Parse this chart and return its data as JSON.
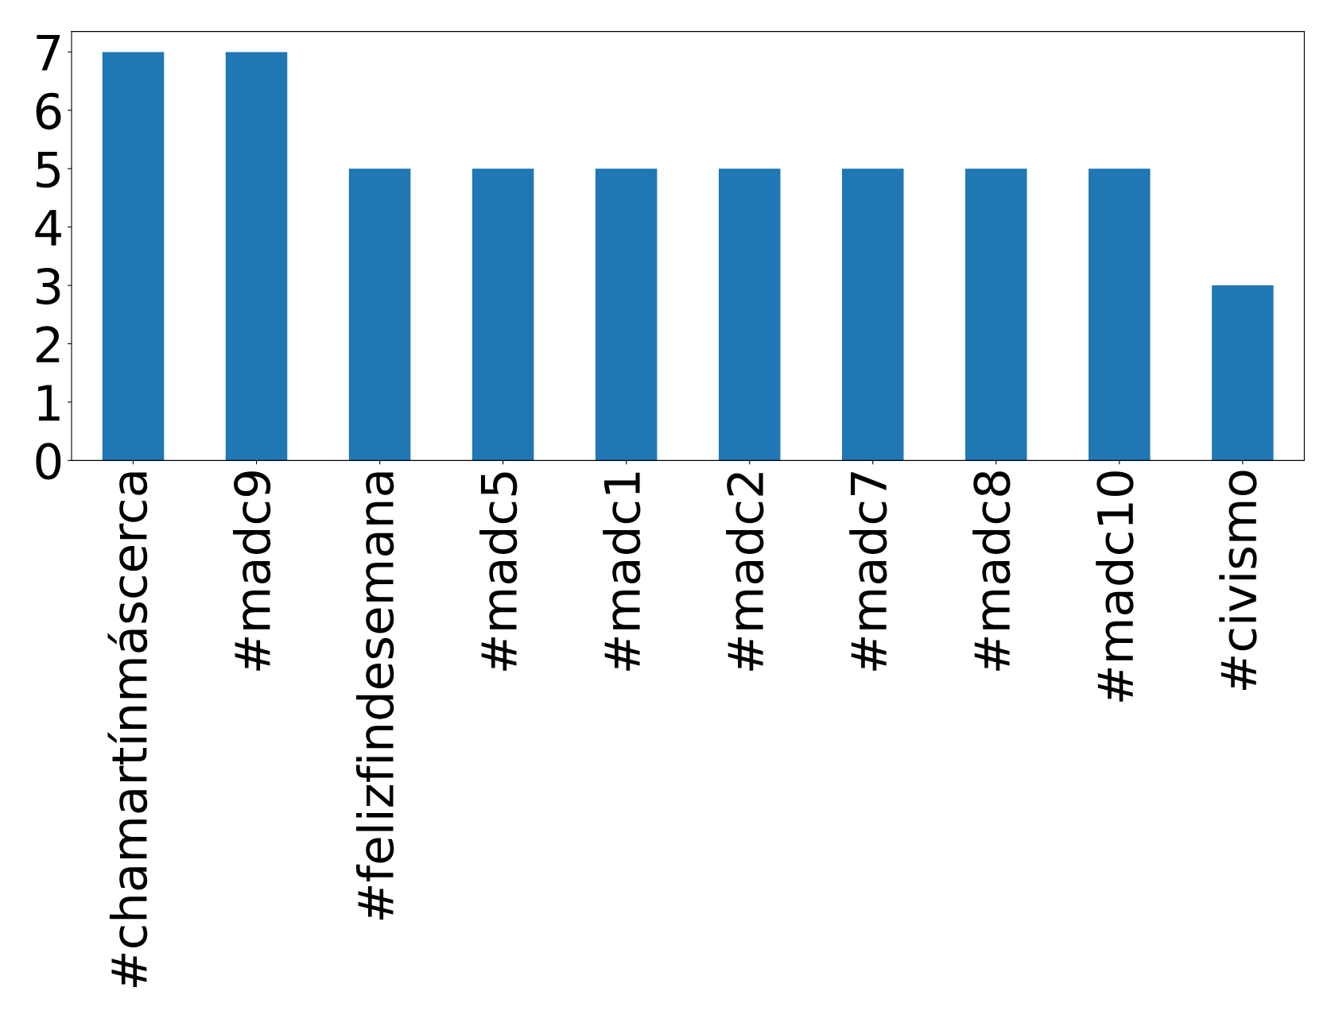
{
  "chart_data": {
    "type": "bar",
    "categories": [
      "#chamartínmáscerca",
      "#madc9",
      "#felizfindesemana",
      "#madc5",
      "#madc1",
      "#madc2",
      "#madc7",
      "#madc8",
      "#madc10",
      "#civismo"
    ],
    "values": [
      7,
      7,
      5,
      5,
      5,
      5,
      5,
      5,
      5,
      3
    ],
    "color": "#1f77b4",
    "ylim": [
      0,
      7.35
    ],
    "yticks": [
      0,
      1,
      2,
      3,
      4,
      5,
      6,
      7
    ],
    "grid": false,
    "legend": false
  }
}
